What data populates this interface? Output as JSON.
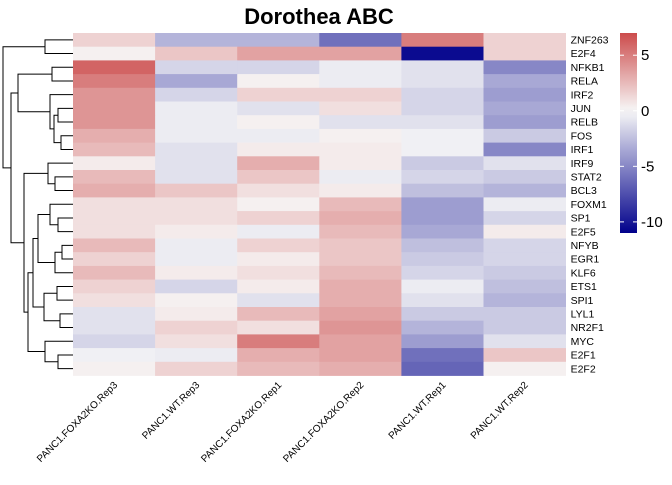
{
  "chart_data": {
    "type": "heatmap",
    "title": "Dorothea ABC",
    "xlabel": "",
    "ylabel": "",
    "columns": [
      "PANC1.FOXA2KO.Rep3",
      "PANC1.WT.Rep3",
      "PANC1.FOXA2KO.Rep1",
      "PANC1.FOXA2KO.Rep2",
      "PANC1.WT.Rep1",
      "PANC1.WT.Rep2"
    ],
    "rows": [
      "ZNF263",
      "E2F4",
      "NFKB1",
      "RELA",
      "IRF2",
      "JUN",
      "RELB",
      "FOS",
      "IRF1",
      "IRF9",
      "STAT2",
      "BCL3",
      "FOXM1",
      "SP1",
      "E2F5",
      "NFYB",
      "EGR1",
      "KLF6",
      "ETS1",
      "SPI1",
      "LYL1",
      "NR2F1",
      "MYC",
      "E2F1",
      "E2F2"
    ],
    "values": [
      [
        1.5,
        -3.0,
        -3.0,
        -6.0,
        5.0,
        1.5
      ],
      [
        0.3,
        2.0,
        3.5,
        3.5,
        -10.5,
        1.5
      ],
      [
        6.0,
        -1.5,
        -1.5,
        -0.5,
        -1.0,
        -5.0
      ],
      [
        5.0,
        -3.5,
        0.3,
        -0.5,
        -1.0,
        -3.5
      ],
      [
        4.0,
        -1.5,
        1.5,
        1.5,
        -1.5,
        -4.0
      ],
      [
        4.0,
        -0.5,
        -1.0,
        1.0,
        -1.5,
        -3.5
      ],
      [
        4.0,
        -0.5,
        0.3,
        -1.0,
        -1.0,
        -4.0
      ],
      [
        3.0,
        -0.5,
        -0.5,
        0.3,
        -0.3,
        -2.0
      ],
      [
        2.5,
        -1.0,
        0.5,
        0.5,
        -0.3,
        -5.0
      ],
      [
        0.5,
        -1.0,
        3.0,
        0.5,
        -2.0,
        -1.0
      ],
      [
        2.5,
        -1.0,
        2.0,
        -0.5,
        -1.5,
        -2.0
      ],
      [
        3.0,
        2.0,
        1.0,
        0.5,
        -2.5,
        -3.0
      ],
      [
        1.0,
        1.0,
        0.3,
        2.5,
        -4.0,
        -0.5
      ],
      [
        1.0,
        1.0,
        1.5,
        3.0,
        -4.0,
        -1.5
      ],
      [
        1.0,
        0.5,
        -0.5,
        2.5,
        -3.5,
        0.5
      ],
      [
        2.5,
        -0.5,
        1.5,
        2.0,
        -2.5,
        -1.5
      ],
      [
        1.5,
        -0.5,
        0.5,
        2.0,
        -2.0,
        -1.5
      ],
      [
        2.5,
        0.5,
        1.0,
        2.5,
        -1.5,
        -2.0
      ],
      [
        1.5,
        -1.5,
        0.5,
        3.0,
        -0.5,
        -2.5
      ],
      [
        1.0,
        0.3,
        -1.0,
        3.0,
        -1.0,
        -3.0
      ],
      [
        -1.0,
        0.5,
        2.5,
        3.5,
        -2.0,
        -2.0
      ],
      [
        -1.0,
        1.5,
        1.0,
        4.0,
        -3.0,
        -2.0
      ],
      [
        -1.5,
        1.0,
        5.0,
        3.5,
        -4.0,
        -1.0
      ],
      [
        -0.3,
        -0.5,
        3.0,
        3.5,
        -6.0,
        2.0
      ],
      [
        0.3,
        1.5,
        2.5,
        3.0,
        -6.5,
        0.3
      ]
    ],
    "color_scale": {
      "min": -11,
      "max": 7,
      "low_color": "#00008B",
      "mid_color": "#F7F7F7",
      "high_color": "#CC4C4C",
      "ticks": [
        5,
        0,
        -5,
        -10
      ],
      "tick_labels": [
        "5",
        "0",
        "-5",
        "-10"
      ]
    },
    "row_dendrogram": true,
    "legend": "right"
  }
}
